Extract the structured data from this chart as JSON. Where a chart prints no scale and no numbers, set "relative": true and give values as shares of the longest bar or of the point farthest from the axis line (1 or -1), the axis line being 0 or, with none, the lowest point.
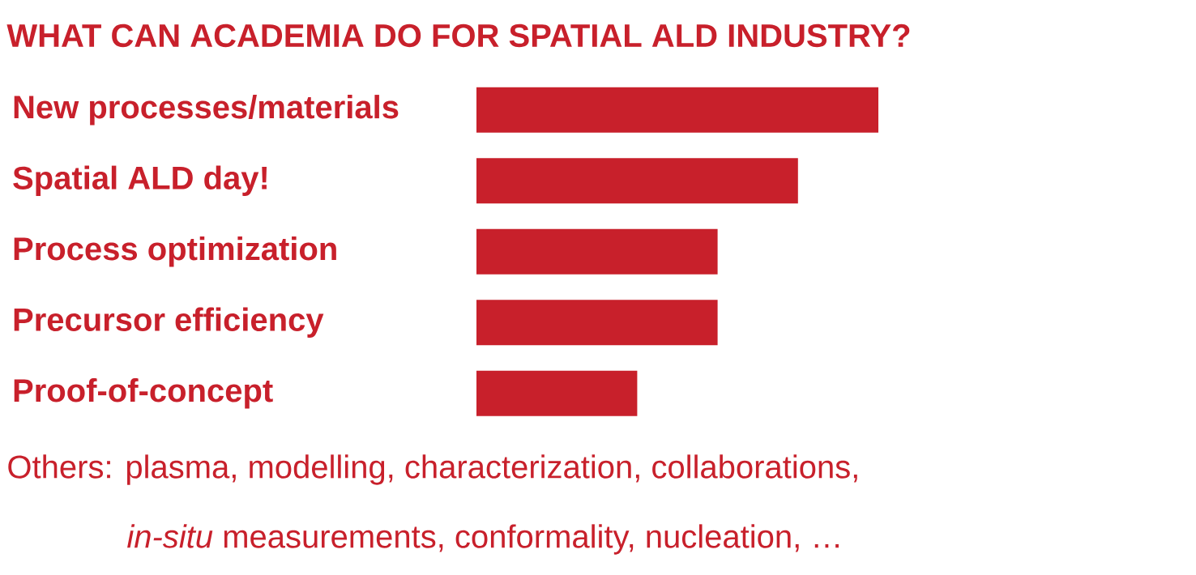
{
  "chart_data": {
    "type": "bar",
    "orientation": "horizontal",
    "relative": true,
    "title": "WHAT CAN ACADEMIA DO FOR SPATIAL ALD INDUSTRY?",
    "categories": [
      "New processes/materials",
      "Spatial ALD day!",
      "Process optimization",
      "Precursor efficiency",
      "Proof-of-concept"
    ],
    "values": [
      1,
      0.8,
      0.6,
      0.6,
      0.4
    ],
    "color": "#c8202b",
    "annotations": [
      "Others: plasma, modelling, characterization, collaborations,",
      "*in-situ* measurements, conformality, nucleation, …"
    ]
  }
}
